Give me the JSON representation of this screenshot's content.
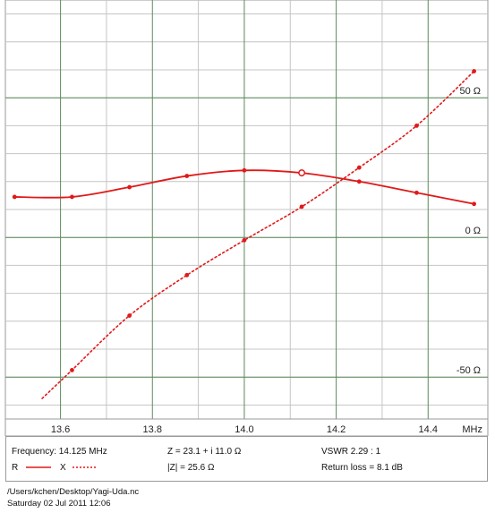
{
  "chart_data": {
    "type": "line",
    "x_unit": "MHz",
    "xlim": [
      13.48,
      14.53
    ],
    "ylim": [
      -65,
      85
    ],
    "grid": true,
    "x_ticks": [
      13.6,
      13.8,
      14.0,
      14.2,
      14.4
    ],
    "x_tick_labels": [
      "13.6",
      "13.8",
      "14.0",
      "14.2",
      "14.4"
    ],
    "y_annotations": [
      {
        "value": 50,
        "label": "50 Ω"
      },
      {
        "value": 0,
        "label": "0 Ω"
      },
      {
        "value": -50,
        "label": "-50 Ω"
      }
    ],
    "series": [
      {
        "name": "R",
        "style": "solid",
        "color": "#e01919",
        "x": [
          13.5,
          13.625,
          13.75,
          13.875,
          14.0,
          14.125,
          14.25,
          14.375,
          14.5
        ],
        "y": [
          14.5,
          14.5,
          18.0,
          22.0,
          24.0,
          23.1,
          20.0,
          16.0,
          12.0
        ]
      },
      {
        "name": "X",
        "style": "dotted",
        "color": "#e01919",
        "x": [
          13.625,
          13.75,
          13.875,
          14.0,
          14.125,
          14.25,
          14.375,
          14.5
        ],
        "y": [
          -47.5,
          -28.0,
          -13.5,
          -1.0,
          11.0,
          25.0,
          40.0,
          59.5
        ]
      }
    ],
    "marker": {
      "x": 14.125,
      "y": 23.1
    }
  },
  "legend": {
    "frequency": "Frequency: 14.125 MHz",
    "impedance": "Z = 23.1 + i 11.0 Ω",
    "vswr": "VSWR 2.29 : 1",
    "r_label": "R",
    "x_label": "X",
    "magnitude": "|Z| = 25.6 Ω",
    "return_loss": "Return loss = 8.1 dB"
  },
  "footer": {
    "path": "/Users/kchen/Desktop/Yagi-Uda.nc",
    "date": "Saturday 02 Jul 2011 12:06"
  },
  "colors": {
    "curve": "#e01919",
    "grid_green": "#5c8a5c",
    "grid_gray": "#c4c4c4"
  }
}
